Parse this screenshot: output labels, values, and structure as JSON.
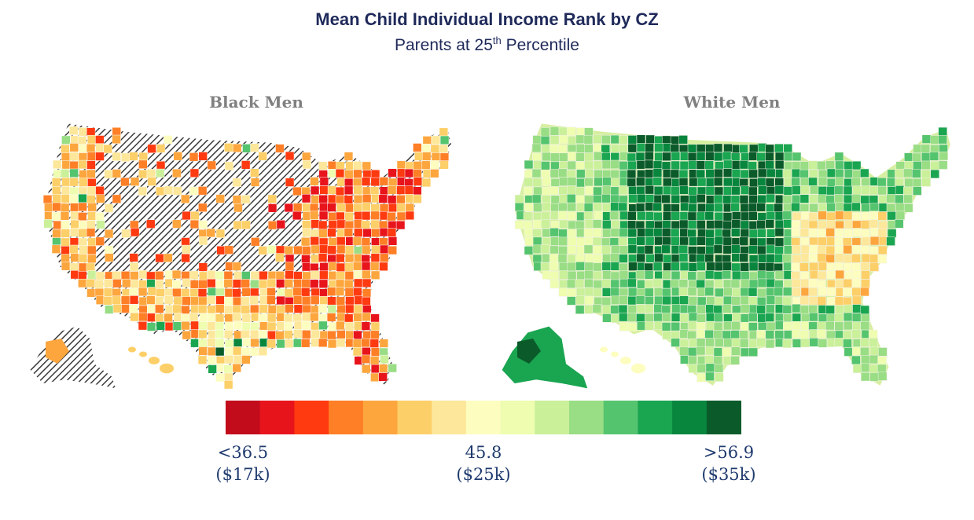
{
  "header": {
    "title": "Mean Child Individual Income Rank by CZ",
    "subtitle_main": "Parents at 25",
    "subtitle_sup": "th",
    "subtitle_rest": " Percentile"
  },
  "panels": [
    {
      "title": "Black Men",
      "palette_bias": "red",
      "hatched_missing": true
    },
    {
      "title": "White Men",
      "palette_bias": "green",
      "hatched_missing": false
    }
  ],
  "legend": {
    "colors": [
      "#c20c1c",
      "#e8141c",
      "#ff3a10",
      "#ff7f27",
      "#fda63e",
      "#fdcf68",
      "#fde79a",
      "#fdfdc0",
      "#eefdb0",
      "#caf09a",
      "#99dd85",
      "#55c46e",
      "#1aa551",
      "#09863e",
      "#0b5b2a"
    ],
    "ticks": [
      {
        "value": "<36.5",
        "dollars": "($17k)"
      },
      {
        "value": "45.8",
        "dollars": "($25k)"
      },
      {
        "value": ">56.9",
        "dollars": "($35k)"
      }
    ]
  }
}
